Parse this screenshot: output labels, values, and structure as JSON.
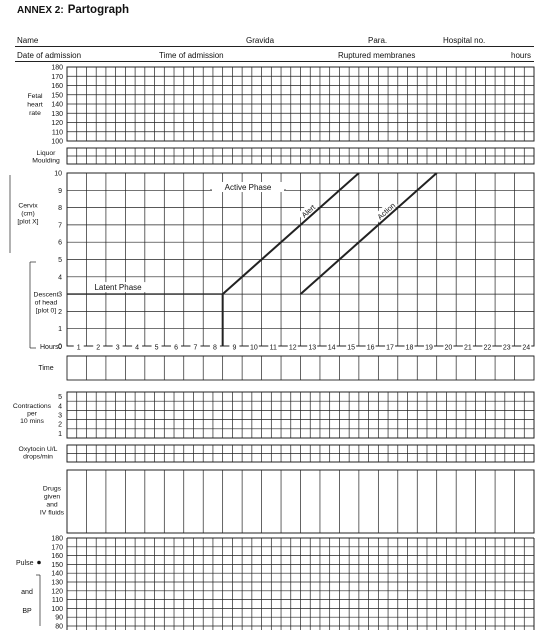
{
  "header": {
    "annex": "ANNEX 2:",
    "title": "Partograph",
    "name_label": "Name",
    "gravida_label": "Gravida",
    "para_label": "Para.",
    "hospital_label": "Hospital no.",
    "admission_date_label": "Date of admission",
    "admission_time_label": "Time of admission",
    "membranes_label": "Ruptured membranes",
    "hours_label": "hours"
  },
  "fetal_heart_rate": {
    "label_lines": [
      "Fetal",
      "heart",
      "rate"
    ],
    "scale": [
      "180",
      "170",
      "160",
      "150",
      "140",
      "130",
      "120",
      "110",
      "100"
    ]
  },
  "liquor": {
    "label_lines": [
      "Liquor",
      "Moulding"
    ]
  },
  "cervix": {
    "cervix_label_lines": [
      "Cervix",
      "(cm)",
      "[plot X]"
    ],
    "descent_label_lines": [
      "Descent",
      "of head",
      "[plot 0]"
    ],
    "scale": [
      "10",
      "9",
      "8",
      "7",
      "6",
      "5",
      "4",
      "3",
      "2",
      "1",
      "0"
    ],
    "hours_label": "Hours",
    "hours": [
      "1",
      "2",
      "3",
      "4",
      "5",
      "6",
      "7",
      "8",
      "9",
      "10",
      "11",
      "12",
      "13",
      "14",
      "15",
      "16",
      "17",
      "18",
      "19",
      "20",
      "21",
      "22",
      "23",
      "24"
    ],
    "time_label": "Time",
    "latent_phase": "Latent Phase",
    "active_phase": "Active Phase",
    "alert": "Alert",
    "action": "Action",
    "alert_line": {
      "start_hour": 8,
      "start_cm": 3,
      "end_hour": 15,
      "end_cm": 10
    },
    "action_line": {
      "start_hour": 12,
      "start_cm": 3,
      "end_hour": 19,
      "end_cm": 10
    }
  },
  "contractions": {
    "label_lines": [
      "Contractions",
      "per",
      "10 mins"
    ],
    "scale": [
      "5",
      "4",
      "3",
      "2",
      "1"
    ]
  },
  "oxytocin": {
    "label_lines": [
      "Oxytocin U/L",
      "drops/min"
    ]
  },
  "drugs": {
    "label_lines": [
      "Drugs",
      "given",
      "and",
      "IV fluids"
    ]
  },
  "pulse_bp": {
    "pulse_label": "Pulse",
    "and_label": "and",
    "bp_label": "BP",
    "scale": [
      "180",
      "170",
      "160",
      "150",
      "140",
      "130",
      "120",
      "110",
      "100",
      "90",
      "80"
    ]
  }
}
